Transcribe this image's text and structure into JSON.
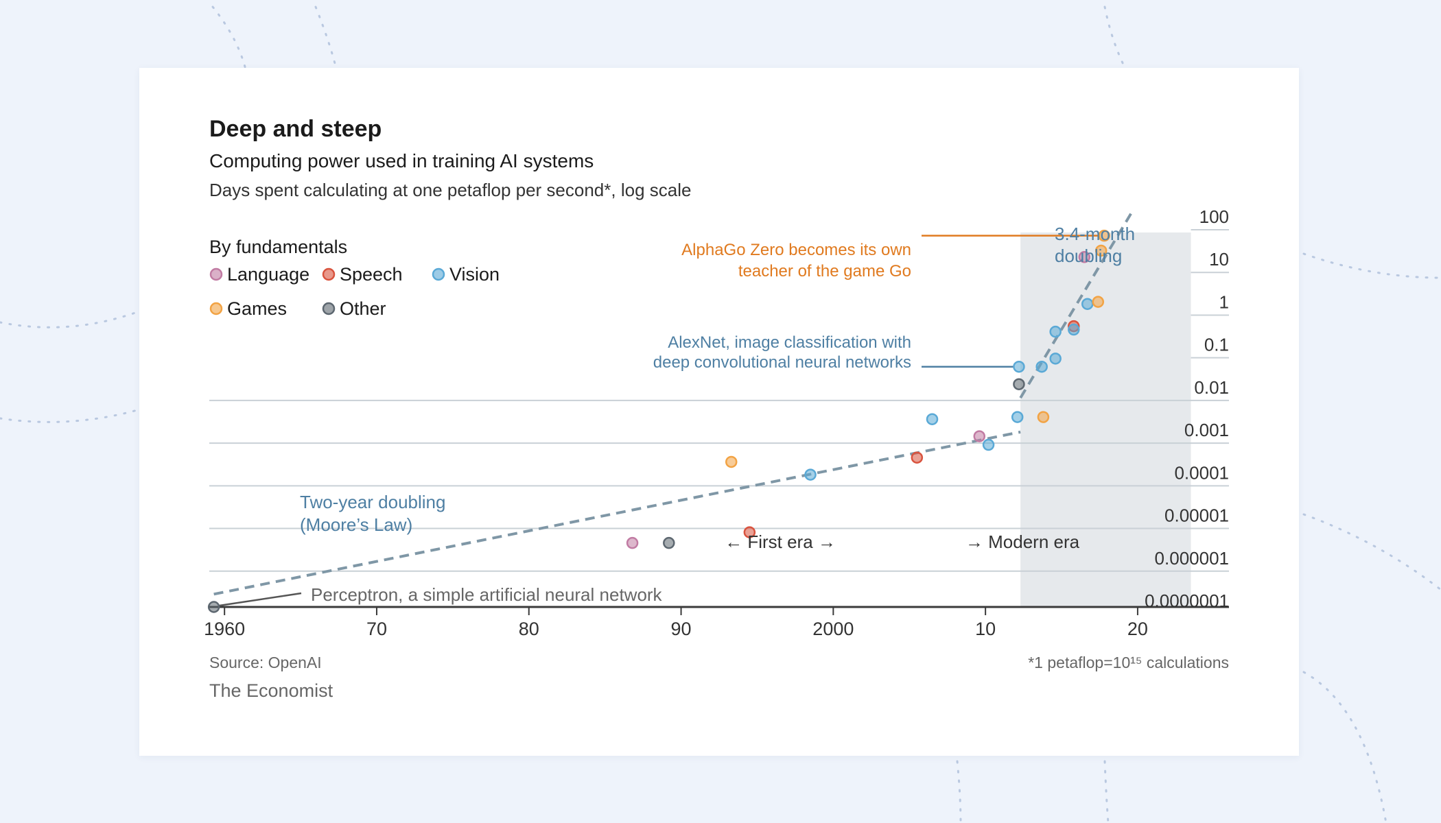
{
  "chart_data": {
    "type": "scatter",
    "title": "Deep and steep",
    "subtitle": "Computing power used in training AI systems",
    "ylabel": "Days spent calculating at one petaflop per second*, log scale",
    "xlabel": "",
    "xlim": [
      1959,
      2026
    ],
    "ylim": [
      1e-07,
      100
    ],
    "y_scale": "log",
    "x_ticks": [
      {
        "value": 1960,
        "label": "1960"
      },
      {
        "value": 1970,
        "label": "70"
      },
      {
        "value": 1980,
        "label": "80"
      },
      {
        "value": 1990,
        "label": "90"
      },
      {
        "value": 2000,
        "label": "2000"
      },
      {
        "value": 2010,
        "label": "10"
      },
      {
        "value": 2020,
        "label": "20"
      }
    ],
    "y_ticks": [
      {
        "exp": 2,
        "label": "100"
      },
      {
        "exp": 1,
        "label": "10"
      },
      {
        "exp": 0,
        "label": "1"
      },
      {
        "exp": -1,
        "label": "0.1"
      },
      {
        "exp": -2,
        "label": "0.01"
      },
      {
        "exp": -3,
        "label": "0.001"
      },
      {
        "exp": -4,
        "label": "0.0001"
      },
      {
        "exp": -5,
        "label": "0.00001"
      },
      {
        "exp": -6,
        "label": "0.000001"
      },
      {
        "exp": -7,
        "label": "0.0000001"
      }
    ],
    "legend_title": "By fundamentals",
    "legend_position": "top-left",
    "series": [
      {
        "name": "Language",
        "color": "#c17ba3",
        "points": [
          [
            1986.8,
            -5.5
          ],
          [
            2016.5,
            1.2
          ],
          [
            2009.6,
            -3.0
          ]
        ]
      },
      {
        "name": "Speech",
        "color": "#d9533e",
        "points": [
          [
            1994.5,
            -5.25
          ],
          [
            2005.5,
            -3.5
          ],
          [
            2015.8,
            -0.42
          ]
        ]
      },
      {
        "name": "Vision",
        "color": "#5aa9d6",
        "points": [
          [
            1998.5,
            -3.9
          ],
          [
            2006.5,
            -2.6
          ],
          [
            2010.2,
            -3.2
          ],
          [
            2012.1,
            -2.55
          ],
          [
            2012.2,
            -1.37
          ],
          [
            2013.7,
            -1.37
          ],
          [
            2014.6,
            -1.18
          ],
          [
            2014.6,
            -0.55
          ],
          [
            2015.8,
            -0.5
          ],
          [
            2016.7,
            0.1
          ]
        ]
      },
      {
        "name": "Games",
        "color": "#f2a344",
        "points": [
          [
            1993.3,
            -3.6
          ],
          [
            2013.8,
            -2.55
          ],
          [
            2017.4,
            0.15
          ],
          [
            2017.6,
            1.35
          ],
          [
            2017.8,
            1.7
          ]
        ]
      },
      {
        "name": "Other",
        "color": "#5d6770",
        "points": [
          [
            1959.3,
            -7.0
          ],
          [
            1989.2,
            -5.5
          ],
          [
            2012.2,
            -1.78
          ]
        ]
      }
    ],
    "trend_lines": [
      {
        "name": "Two-year doubling (Moore's Law)",
        "from": [
          1959.3,
          -6.7
        ],
        "to": [
          2012.3,
          -2.9
        ]
      },
      {
        "name": "3.4-month doubling",
        "from": [
          2012.3,
          -2.1
        ],
        "to": [
          2019.7,
          2.3
        ]
      }
    ],
    "shaded_region": {
      "from": 2012.3,
      "to": 2023.5
    },
    "annotations": {
      "two_year_line1": "Two-year doubling",
      "two_year_line2": "(Moore’s Law)",
      "three_month_line1": "3.4-month",
      "three_month_line2": "doubling",
      "alphago_line1": "AlphaGo Zero becomes its own",
      "alphago_line2": "teacher of the game Go",
      "alexnet_line1": "AlexNet, image classification with",
      "alexnet_line2": "deep convolutional neural networks",
      "perceptron": "Perceptron, a simple artificial neural network",
      "first_era": "← First era →",
      "modern_era": "→ Modern era"
    },
    "source": "Source: OpenAI",
    "footnote": "*1 petaflop=10¹⁵ calculations",
    "brand": "The Economist",
    "colors": {
      "text": "#1b1b1b",
      "axis": "#3a3a3a",
      "grid": "#c9d0d6",
      "trend": "#7f97a6",
      "shade": "#e6e9ec",
      "annotation_blue": "#4e7fa3",
      "annotation_orange": "#e07a1f",
      "muted": "#666666"
    }
  }
}
